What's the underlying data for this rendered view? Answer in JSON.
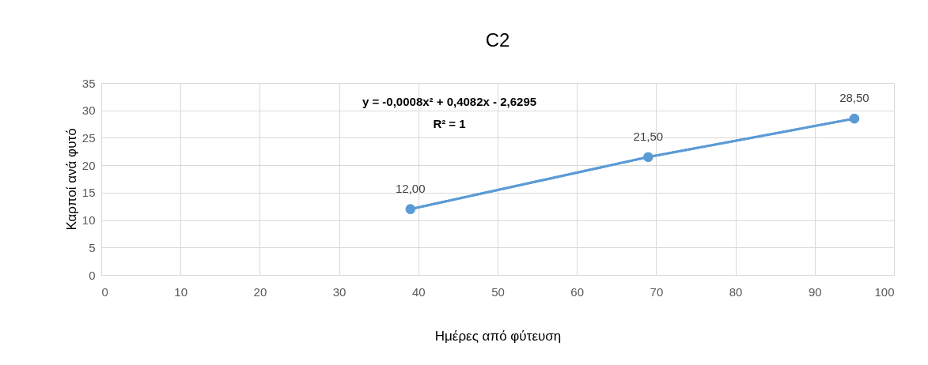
{
  "chart_data": {
    "type": "line",
    "title": "C2",
    "xlabel": "Ημέρες από φύτευση",
    "ylabel": "Καρποί ανά φυτό",
    "x": [
      39,
      69,
      95
    ],
    "series": [
      {
        "color": "#5b9bd5",
        "values": [
          12,
          21.5,
          28.5
        ],
        "value_labels": [
          "12,00",
          "21,50",
          "28,50"
        ]
      },
      {
        "type": "line",
        "color": "#5b9bd5",
        "x": [
          39,
          69,
          95
        ],
        "values": [
          12,
          21.5,
          28.5
        ],
        "marker": "none",
        "line_style": "dotted"
      }
    ],
    "annotations": [
      "y = -0,0008x² + 0,4082x - 2,6295",
      "R² = 1"
    ],
    "xlim": [
      0,
      100
    ],
    "xticks": [
      0,
      10,
      20,
      30,
      40,
      50,
      60,
      70,
      80,
      90,
      100
    ],
    "ylim": [
      0,
      35
    ],
    "yticks": [
      0,
      5,
      10,
      15,
      20,
      25,
      30,
      35
    ],
    "grid": true,
    "marker": "circle",
    "line_style": "solid"
  }
}
